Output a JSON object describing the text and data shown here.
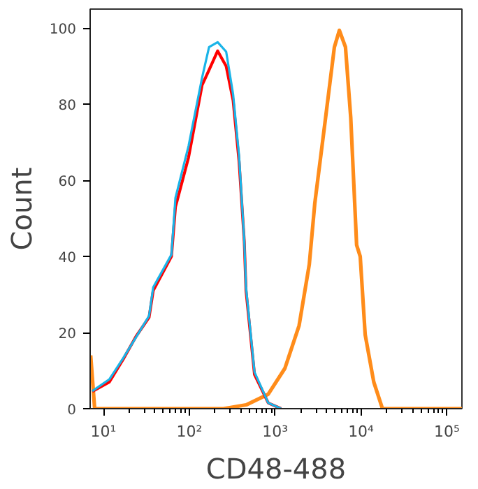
{
  "chart_data": {
    "type": "line",
    "xlabel": "CD48-488",
    "ylabel": "Count",
    "log": "x",
    "grid": false,
    "marker": "none",
    "line_style": "solid",
    "xlim": [
      7,
      150000
    ],
    "ylim": [
      0,
      105
    ],
    "xticks": [
      {
        "value": 10,
        "label": "10¹"
      },
      {
        "value": 100,
        "label": "10²"
      },
      {
        "value": 1000,
        "label": "10³"
      },
      {
        "value": 10000,
        "label": "10⁴"
      },
      {
        "value": 100000,
        "label": "10⁵"
      }
    ],
    "yticks": [
      0,
      20,
      40,
      60,
      80,
      100
    ],
    "series": [
      {
        "color": "#ff8c1a",
        "x": [
          7.1,
          7.9,
          50,
          250,
          460,
          830,
          1300,
          1900,
          2500,
          2900,
          3800,
          4900,
          5600,
          6600,
          7600,
          8900,
          9800,
          11200,
          14100,
          17800,
          150000
        ],
        "values": [
          14,
          0,
          0,
          0,
          1,
          3.8,
          10.6,
          21.8,
          37.9,
          54,
          75,
          95,
          99.4,
          95,
          76.5,
          43,
          40,
          19.4,
          7,
          0,
          0
        ]
      },
      {
        "color": "#ff0000",
        "x": [
          7.4,
          11.7,
          17,
          24,
          34,
          38,
          62,
          69,
          98,
          141,
          170,
          214,
          269,
          324,
          380,
          437,
          458,
          575,
          832,
          1175
        ],
        "values": [
          4.5,
          7,
          13,
          19,
          24,
          31,
          40,
          53,
          66,
          85,
          89,
          94,
          90,
          81,
          65,
          44,
          31,
          9,
          1.5,
          0
        ]
      },
      {
        "color": "#1ab4e8",
        "x": [
          7.4,
          11.7,
          17,
          24,
          34,
          38,
          62,
          69,
          98,
          141,
          170,
          214,
          269,
          324,
          380,
          437,
          458,
          575,
          832,
          1175
        ],
        "values": [
          4.6,
          7.7,
          13.3,
          18.8,
          24.4,
          31.9,
          40.5,
          55.4,
          69,
          87,
          95,
          96.3,
          93.8,
          82.6,
          66.5,
          44.2,
          31.9,
          9.6,
          1.5,
          0
        ]
      }
    ]
  }
}
